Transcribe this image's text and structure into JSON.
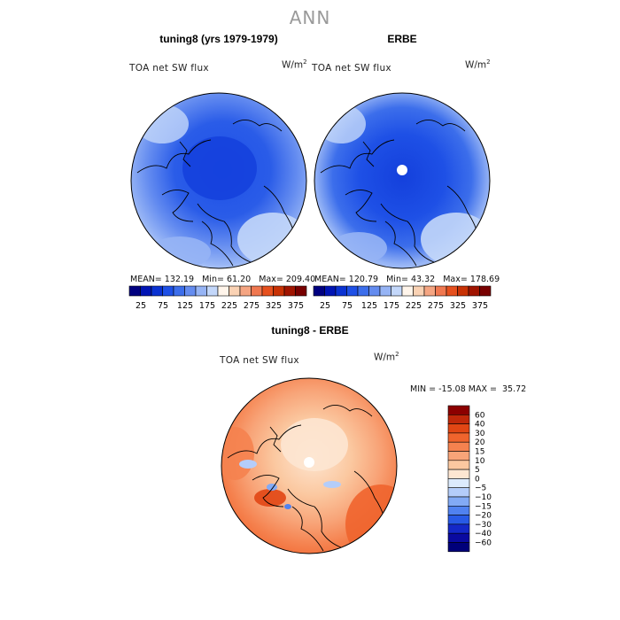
{
  "figure": {
    "main_title": "ANN",
    "units_base": "W/m",
    "units_exp": "2"
  },
  "colors": {
    "base_scale": [
      "#000080",
      "#0014b4",
      "#0a32d2",
      "#1e50e6",
      "#3c6eeb",
      "#648cf0",
      "#96b4f5",
      "#c3d7fa",
      "#fff5eb",
      "#fad2b4",
      "#f5a582",
      "#f07850",
      "#e6501e",
      "#c83205",
      "#a01400",
      "#780000"
    ],
    "diff_scale": [
      "#00007a",
      "#0a0aa0",
      "#1428c8",
      "#285ae6",
      "#5082f0",
      "#82aaf5",
      "#b4cdfa",
      "#dceafc",
      "#fde6d2",
      "#fbc8a0",
      "#f8a478",
      "#f5824f",
      "#f0642d",
      "#e14614",
      "#c0280a",
      "#8c0000"
    ]
  },
  "chart_data": [
    {
      "type": "heatmap",
      "projection": "north polar stereographic",
      "title": "tuning8 (yrs 1979-1979)",
      "field_label": "TOA net SW flux",
      "stats": {
        "mean": "132.19",
        "min": "61.20",
        "max": "209.40"
      },
      "stats_labels": {
        "mean": "MEAN=",
        "min": "Min=",
        "max": "Max="
      },
      "colorbar_ticks": [
        "25",
        "75",
        "125",
        "175",
        "225",
        "275",
        "325",
        "375"
      ]
    },
    {
      "type": "heatmap",
      "projection": "north polar stereographic",
      "title": "ERBE",
      "field_label": "TOA net SW flux",
      "stats": {
        "mean": "120.79",
        "min": "43.32",
        "max": "178.69"
      },
      "stats_labels": {
        "mean": "MEAN=",
        "min": "Min=",
        "max": "Max="
      },
      "colorbar_ticks": [
        "25",
        "75",
        "125",
        "175",
        "225",
        "275",
        "325",
        "375"
      ]
    },
    {
      "type": "heatmap",
      "projection": "north polar stereographic",
      "title": "tuning8 - ERBE",
      "field_label": "TOA net SW flux",
      "stats": {
        "min": "-15.08",
        "max": "35.72"
      },
      "stats_labels": {
        "min": "MIN =",
        "max": "MAX ="
      },
      "colorbar_ticks": [
        "60",
        "40",
        "30",
        "20",
        "15",
        "10",
        "5",
        "0",
        "-5",
        "-10",
        "-15",
        "-20",
        "-30",
        "-40",
        "-60"
      ]
    }
  ]
}
